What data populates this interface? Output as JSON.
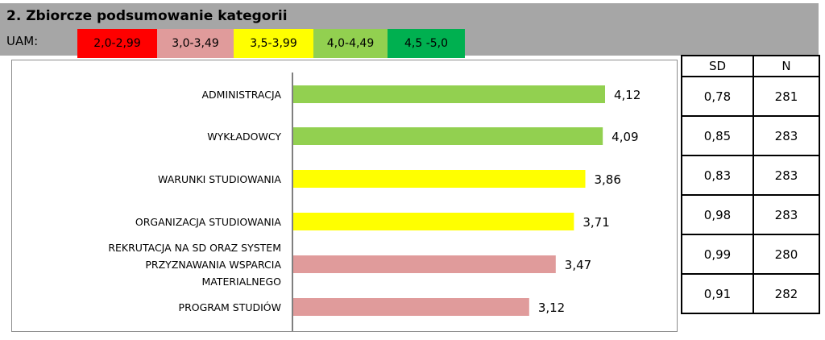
{
  "title": "2. Zbiorcze podsumowanie kategorii",
  "legend": {
    "label": "UAM:",
    "items": [
      {
        "range": "2,0-2,99",
        "color": "#ff0000"
      },
      {
        "range": "3,0-3,49",
        "color": "#e09b9b"
      },
      {
        "range": "3,5-3,99",
        "color": "#ffff00"
      },
      {
        "range": "4,0-4,49",
        "color": "#92d050"
      },
      {
        "range": "4,5 -5,0",
        "color": "#00b050"
      }
    ]
  },
  "chart_data": {
    "type": "bar",
    "orientation": "horizontal",
    "categories": [
      "ADMINISTRACJA",
      "WYKŁADOWCY",
      "WARUNKI STUDIOWANIA",
      "ORGANIZACJA STUDIOWANIA",
      "REKRUTACJA NA SD ORAZ SYSTEM PRZYZNAWANIA WSPARCIA MATERIALNEGO",
      "PROGRAM STUDIÓW"
    ],
    "values": [
      4.12,
      4.09,
      3.86,
      3.71,
      3.47,
      3.12
    ],
    "value_labels": [
      "4,12",
      "4,09",
      "3,86",
      "3,71",
      "3,47",
      "3,12"
    ],
    "bar_colors": [
      "#92d050",
      "#92d050",
      "#ffff00",
      "#ffff00",
      "#e09b9b",
      "#e09b9b"
    ],
    "xlim": [
      0,
      5.4
    ],
    "grid": false,
    "legend": false
  },
  "table": {
    "headers": [
      "SD",
      "N"
    ],
    "rows": [
      [
        "0,78",
        "281"
      ],
      [
        "0,85",
        "283"
      ],
      [
        "0,83",
        "283"
      ],
      [
        "0,98",
        "283"
      ],
      [
        "0,99",
        "280"
      ],
      [
        "0,91",
        "282"
      ]
    ]
  }
}
